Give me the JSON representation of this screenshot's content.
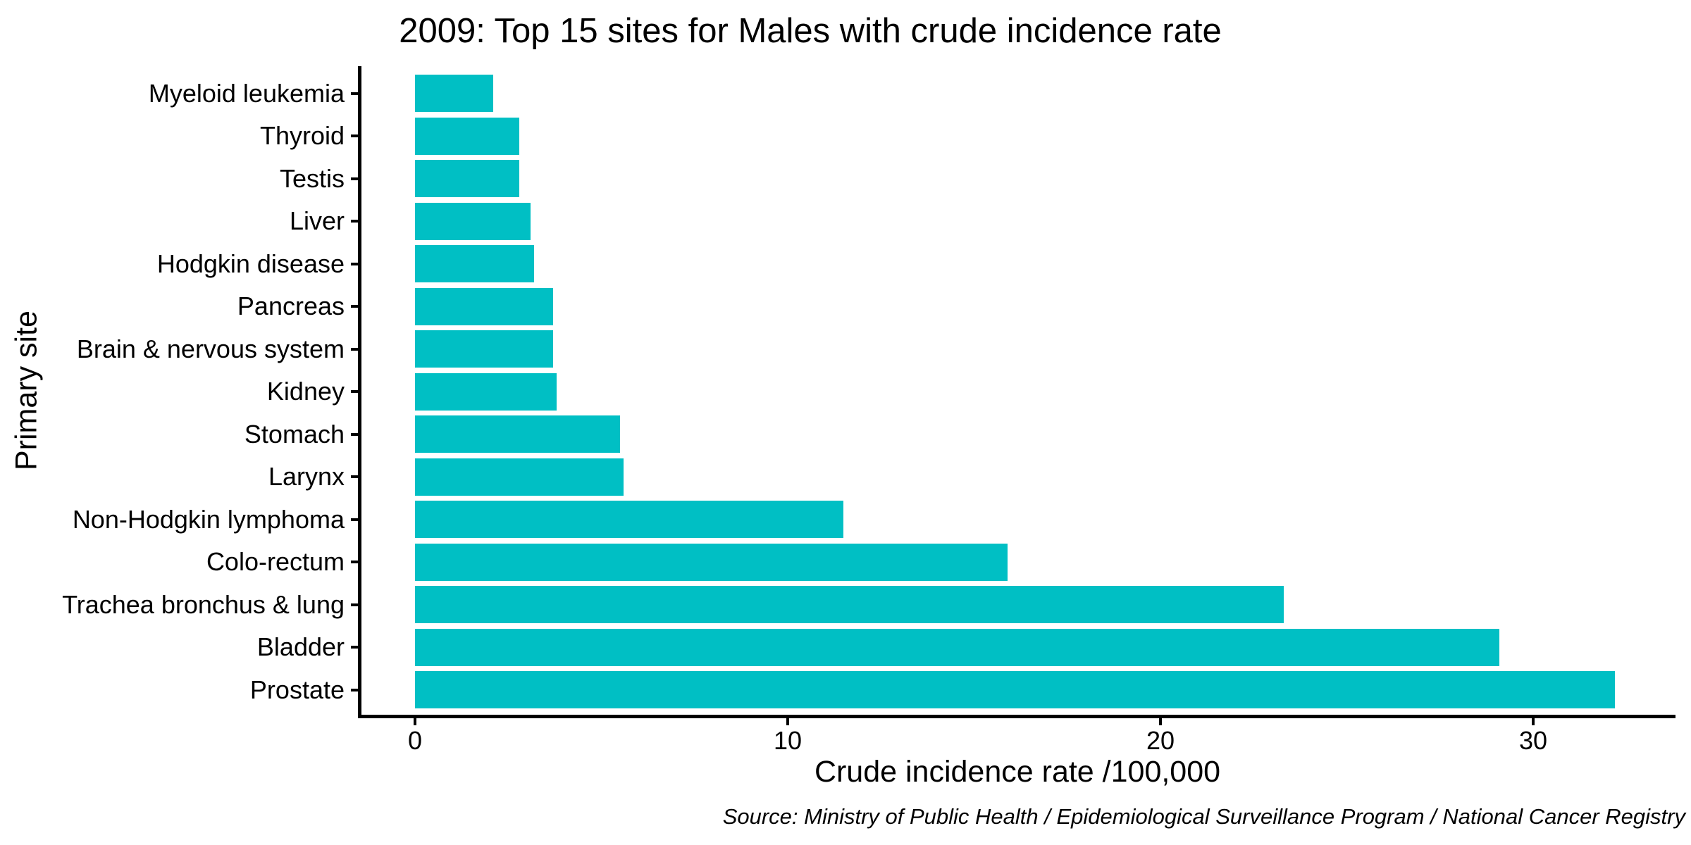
{
  "chart_data": {
    "type": "bar",
    "orientation": "horizontal",
    "title": "2009: Top 15 sites for Males with crude incidence rate",
    "xlabel": "Crude incidence rate /100,000",
    "ylabel": "Primary site",
    "source_caption": "Source: Ministry of Public Health / Epidemiological Surveillance Program / National Cancer Registry",
    "sort_order": "ascending top to bottom",
    "categories": [
      "Myeloid leukemia",
      "Thyroid",
      "Testis",
      "Liver",
      "Hodgkin disease",
      "Pancreas",
      "Brain & nervous system",
      "Kidney",
      "Stomach",
      "Larynx",
      "Non-Hodgkin lymphoma",
      "Colo-rectum",
      "Trachea bronchus & lung",
      "Bladder",
      "Prostate"
    ],
    "values": [
      2.1,
      2.8,
      2.8,
      3.1,
      3.2,
      3.7,
      3.7,
      3.8,
      5.5,
      5.6,
      11.5,
      15.9,
      23.3,
      29.1,
      32.2
    ],
    "x_ticks": [
      0,
      10,
      20,
      30
    ],
    "xlim": [
      0,
      33.8
    ],
    "grid": false,
    "legend": null,
    "bar_color": "#00BFC4",
    "axis_color": "#000000",
    "background_color": "#FFFFFF"
  }
}
